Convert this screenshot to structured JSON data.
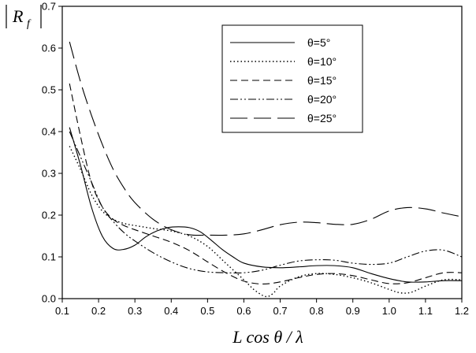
{
  "chart_data": {
    "type": "line",
    "title": "",
    "xlabel": "L cos θ / λ",
    "ylabel": "|R_f|",
    "xlim": [
      0.1,
      1.2
    ],
    "ylim": [
      0.0,
      0.7
    ],
    "x_ticks": [
      "0.1",
      "0.2",
      "0.3",
      "0.4",
      "0.5",
      "0.6",
      "0.7",
      "0.8",
      "0.9",
      "1.0",
      "1.1",
      "1.2"
    ],
    "y_ticks": [
      "0.0",
      "0.1",
      "0.2",
      "0.3",
      "0.4",
      "0.5",
      "0.6",
      "0.7"
    ],
    "grid": false,
    "legend_position": "top-right",
    "series": [
      {
        "name": "θ=5°",
        "dash": "solid",
        "x": [
          0.12,
          0.15,
          0.18,
          0.21,
          0.24,
          0.27,
          0.3,
          0.33,
          0.36,
          0.39,
          0.42,
          0.45,
          0.48,
          0.51,
          0.54,
          0.57,
          0.6,
          0.65,
          0.7,
          0.75,
          0.8,
          0.85,
          0.9,
          0.95,
          1.0,
          1.05,
          1.1,
          1.15,
          1.2
        ],
        "y": [
          0.41,
          0.32,
          0.22,
          0.15,
          0.12,
          0.118,
          0.128,
          0.148,
          0.162,
          0.17,
          0.172,
          0.17,
          0.16,
          0.14,
          0.118,
          0.1,
          0.085,
          0.076,
          0.074,
          0.076,
          0.079,
          0.079,
          0.074,
          0.06,
          0.048,
          0.04,
          0.04,
          0.043,
          0.043
        ]
      },
      {
        "name": "θ=10°",
        "dash": "dotted",
        "x": [
          0.12,
          0.15,
          0.18,
          0.21,
          0.24,
          0.27,
          0.3,
          0.35,
          0.4,
          0.45,
          0.5,
          0.55,
          0.6,
          0.63,
          0.66,
          0.68,
          0.7,
          0.75,
          0.8,
          0.85,
          0.9,
          0.95,
          1.0,
          1.03,
          1.06,
          1.1,
          1.15,
          1.2
        ],
        "y": [
          0.365,
          0.31,
          0.25,
          0.21,
          0.19,
          0.18,
          0.175,
          0.168,
          0.162,
          0.15,
          0.125,
          0.085,
          0.045,
          0.02,
          0.005,
          0.012,
          0.03,
          0.052,
          0.06,
          0.058,
          0.05,
          0.038,
          0.022,
          0.014,
          0.015,
          0.03,
          0.045,
          0.045
        ]
      },
      {
        "name": "θ=15°",
        "dash": "dashed",
        "x": [
          0.12,
          0.15,
          0.18,
          0.21,
          0.24,
          0.27,
          0.3,
          0.35,
          0.4,
          0.45,
          0.5,
          0.55,
          0.6,
          0.65,
          0.7,
          0.75,
          0.8,
          0.85,
          0.9,
          0.95,
          1.0,
          1.05,
          1.1,
          1.15,
          1.2
        ],
        "y": [
          0.515,
          0.39,
          0.28,
          0.22,
          0.19,
          0.175,
          0.165,
          0.15,
          0.135,
          0.115,
          0.088,
          0.062,
          0.042,
          0.035,
          0.04,
          0.05,
          0.058,
          0.06,
          0.055,
          0.045,
          0.036,
          0.038,
          0.05,
          0.062,
          0.062
        ]
      },
      {
        "name": "θ=20°",
        "dash": "dashdotdot",
        "x": [
          0.12,
          0.15,
          0.18,
          0.21,
          0.24,
          0.27,
          0.3,
          0.35,
          0.4,
          0.45,
          0.5,
          0.55,
          0.6,
          0.65,
          0.7,
          0.75,
          0.8,
          0.85,
          0.9,
          0.95,
          1.0,
          1.05,
          1.1,
          1.15,
          1.2
        ],
        "y": [
          0.4,
          0.34,
          0.28,
          0.22,
          0.185,
          0.158,
          0.138,
          0.11,
          0.088,
          0.072,
          0.064,
          0.062,
          0.062,
          0.068,
          0.08,
          0.09,
          0.093,
          0.092,
          0.085,
          0.082,
          0.085,
          0.1,
          0.114,
          0.116,
          0.1
        ]
      },
      {
        "name": "θ=25°",
        "dash": "longdash",
        "x": [
          0.12,
          0.15,
          0.18,
          0.21,
          0.24,
          0.27,
          0.3,
          0.35,
          0.4,
          0.45,
          0.5,
          0.55,
          0.6,
          0.65,
          0.7,
          0.75,
          0.8,
          0.85,
          0.9,
          0.95,
          1.0,
          1.05,
          1.1,
          1.15,
          1.2
        ],
        "y": [
          0.615,
          0.52,
          0.44,
          0.37,
          0.31,
          0.265,
          0.23,
          0.19,
          0.165,
          0.153,
          0.152,
          0.152,
          0.155,
          0.165,
          0.177,
          0.183,
          0.182,
          0.178,
          0.178,
          0.19,
          0.21,
          0.218,
          0.215,
          0.205,
          0.196
        ]
      }
    ]
  }
}
